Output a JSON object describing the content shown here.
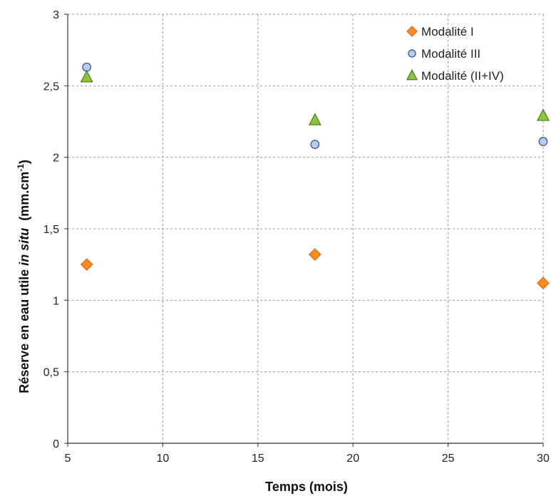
{
  "chart_data": {
    "type": "scatter",
    "title": "",
    "xlabel": "Temps (mois)",
    "ylabel": {
      "prefix": "Réserve en eau utile ",
      "italic": "in situ",
      "unit_base": "  (mm.cm",
      "unit_sup": "-1",
      "unit_close": ")"
    },
    "xlim": [
      5,
      30
    ],
    "ylim": [
      0,
      3
    ],
    "x_ticks": [
      5,
      10,
      15,
      20,
      25,
      30
    ],
    "x_tick_labels": [
      "5",
      "10",
      "15",
      "20",
      "25",
      "30"
    ],
    "y_ticks": [
      0,
      0.5,
      1,
      1.5,
      2,
      2.5,
      3
    ],
    "y_tick_labels": [
      "0",
      "0,5",
      "1",
      "1,5",
      "2",
      "2,5",
      "3"
    ],
    "grid": true,
    "legend_position": "top-right",
    "series": [
      {
        "name": "Modalité I",
        "marker": "diamond",
        "color": "#FF8C1A",
        "stroke": "#D2691E",
        "x": [
          6,
          18,
          30
        ],
        "y": [
          1.25,
          1.32,
          1.12
        ]
      },
      {
        "name": "Modalité III",
        "marker": "circle",
        "color": "#B4CDF0",
        "stroke": "#3C5A8C",
        "x": [
          6,
          18,
          30
        ],
        "y": [
          2.63,
          2.09,
          2.11
        ]
      },
      {
        "name": "Modalité (II+IV)",
        "marker": "triangle",
        "color": "#8CC63F",
        "stroke": "#4C7A1E",
        "x": [
          6,
          18,
          30
        ],
        "y": [
          2.56,
          2.26,
          2.29
        ]
      }
    ]
  }
}
